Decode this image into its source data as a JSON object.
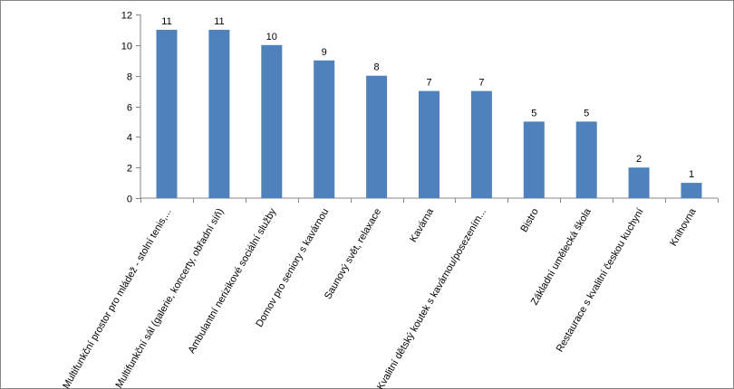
{
  "chart_data": {
    "type": "bar",
    "title": "",
    "xlabel": "",
    "ylabel": "",
    "ylim": [
      0,
      12
    ],
    "yticks": [
      0,
      2,
      4,
      6,
      8,
      10,
      12
    ],
    "grid": false,
    "legend": "none",
    "bar_color": "#4F81BD",
    "categories": [
      "Multifunkční prostor pro mládež - stolní tenis,...",
      "Multifunkční sál (galerie, koncerty, obřadní síň)",
      "Ambulantní nerizikové sociální služby",
      "Domov pro seniory s kavárnou",
      "Saunový svět, relaxace",
      "Kavárna",
      "Kvalitní dětský koutek s kavárnou/posezením...",
      "Bistro",
      "Základní umělecká škola",
      "Restaurace s kvalitní českou kuchyní",
      "Knihovna"
    ],
    "values": [
      11,
      11,
      10,
      9,
      8,
      7,
      7,
      5,
      5,
      2,
      1
    ]
  }
}
